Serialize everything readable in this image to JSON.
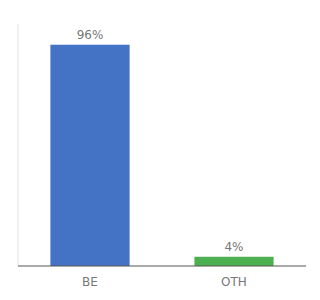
{
  "chart_data": {
    "type": "bar",
    "categories": [
      "BE",
      "OTH"
    ],
    "values": [
      96,
      4
    ],
    "value_labels": [
      "96%",
      "4%"
    ],
    "colors": [
      "#4472c4",
      "#4caf50"
    ],
    "ylim": [
      0,
      105
    ],
    "data_labels": true,
    "tick_labels": "x"
  }
}
